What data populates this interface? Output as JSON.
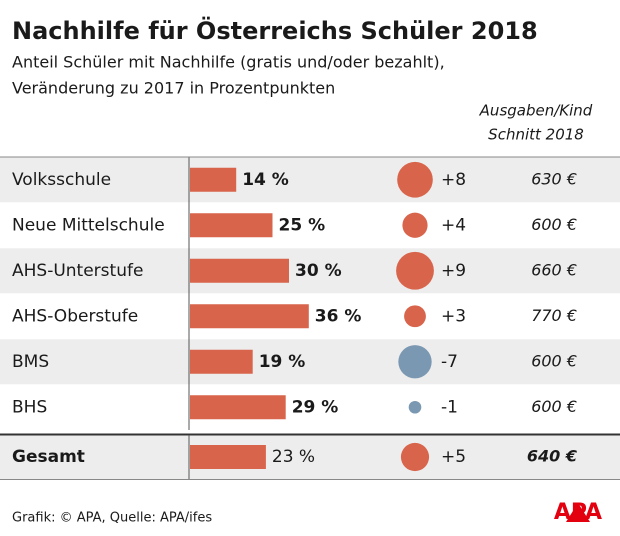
{
  "chart_data": {
    "type": "bar",
    "title": "Nachhilfe für Österreichs Schüler 2018",
    "subtitle": [
      "Anteil Schüler mit Nachhilfe (gratis und/oder bezahlt),",
      "Veränderung zu 2017 in Prozentpunkten"
    ],
    "column_header": [
      "Ausgaben/Kind",
      "Schnitt 2018"
    ],
    "categories": [
      "Volksschule",
      "Neue Mittelschule",
      "AHS-Unterstufe",
      "AHS-Oberstufe",
      "BMS",
      "BHS"
    ],
    "values": [
      14,
      25,
      30,
      36,
      19,
      29
    ],
    "value_labels": [
      "14 %",
      "25 %",
      "30 %",
      "36 %",
      "19 %",
      "29 %"
    ],
    "change": [
      8,
      4,
      9,
      3,
      -7,
      -1
    ],
    "change_labels": [
      "+8",
      "+4",
      "+9",
      "+3",
      "-7",
      "-1"
    ],
    "spending": [
      630,
      600,
      660,
      770,
      600,
      600
    ],
    "spending_labels": [
      "630 €",
      "600 €",
      "660 €",
      "770 €",
      "600 €",
      "600 €"
    ],
    "total": {
      "name": "Gesamt",
      "value": 23,
      "value_label": "23 %",
      "change": 5,
      "change_label": "+5",
      "spending": 640,
      "spending_label": "640 €"
    },
    "color": "#d9644c",
    "positive_color": "#d9644c",
    "negative_color": "#7b98b2",
    "source": "Grafik: © APA, Quelle: APA/ifes",
    "logo": "APA"
  }
}
